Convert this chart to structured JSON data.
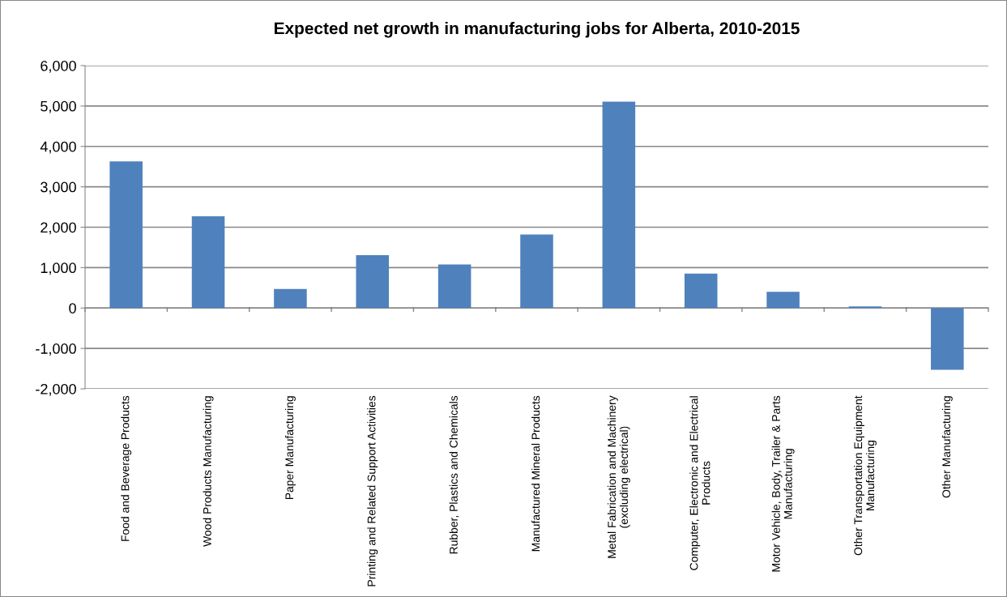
{
  "chart_data": {
    "type": "bar",
    "title": "Expected net growth in manufacturing jobs for Alberta, 2010-2015",
    "categories": [
      "Food and Beverage Products",
      "Wood Products Manufacturing",
      "Paper Manufacturing",
      "Printing and Related Support Activities",
      "Rubber, Plastics and Chemicals",
      "Manufactured Mineral Products",
      "Metal Fabrication and Machinery\n(excluding electrical)",
      "Computer, Electronic and Electrical\nProducts",
      "Motor Vehicle, Body, Trailer & Parts\nManufacturing",
      "Other Transportation Equipment\nManufacturing",
      "Other Manufacturing"
    ],
    "values": [
      3630,
      2270,
      470,
      1310,
      1080,
      1820,
      5110,
      850,
      400,
      40,
      -1530
    ],
    "color": "#4f81bd",
    "ylim": [
      -2000,
      6000
    ],
    "yticks": [
      {
        "value": -2000,
        "label": "-2,000"
      },
      {
        "value": -1000,
        "label": "-1,000"
      },
      0,
      {
        "value": 1000,
        "label": "1,000"
      },
      {
        "value": 2000,
        "label": "2,000"
      },
      {
        "value": 3000,
        "label": "3,000"
      },
      {
        "value": 4000,
        "label": "4,000"
      },
      {
        "value": 5000,
        "label": "5,000"
      },
      {
        "value": 6000,
        "label": "6,000"
      }
    ],
    "grid": "y",
    "legend": false
  }
}
